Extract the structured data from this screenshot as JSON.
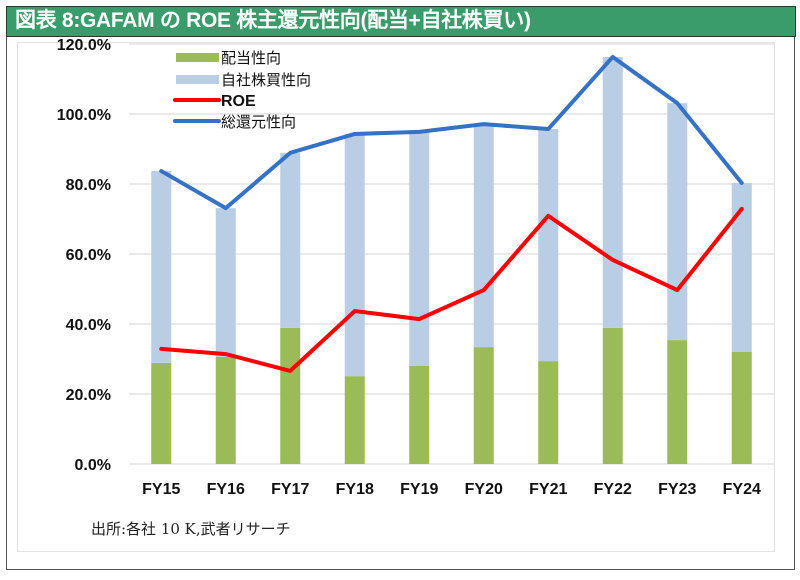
{
  "title": "図表 8:GAFAM の ROE 株主還元性向(配当+自社株買い)",
  "source_note": "出所:各社 10 K,武者リサーチ",
  "colors": {
    "title_bar": "#3A9C6A",
    "dividend": "#9BBB59",
    "buyback": "#B9CDE5",
    "roe": "#FF0000",
    "total": "#3572C6",
    "grid": "#E4E4E4"
  },
  "chart_data": {
    "type": "bar",
    "stacked": true,
    "title": "図表 8:GAFAM の ROE 株主還元性向(配当+自社株買い)",
    "xlabel": "",
    "ylabel": "",
    "ylim": [
      0,
      120
    ],
    "y_ticks": [
      0,
      20,
      40,
      60,
      80,
      100,
      120
    ],
    "y_tick_labels": [
      "0.0%",
      "20.0%",
      "40.0%",
      "60.0%",
      "80.0%",
      "100.0%",
      "120.0%"
    ],
    "grid": true,
    "legend_position": "top-left",
    "categories": [
      "FY15",
      "FY16",
      "FY17",
      "FY18",
      "FY19",
      "FY20",
      "FY21",
      "FY22",
      "FY23",
      "FY24"
    ],
    "series": [
      {
        "name": "配当性向",
        "kind": "bar",
        "values": [
          28.9,
          30.6,
          38.9,
          25.1,
          28.0,
          33.4,
          29.4,
          38.9,
          35.4,
          32.0
        ]
      },
      {
        "name": "自社株買性向",
        "kind": "bar",
        "values": [
          54.8,
          42.5,
          50.0,
          69.2,
          66.9,
          63.7,
          66.3,
          77.4,
          67.7,
          48.3
        ]
      },
      {
        "name": "ROE",
        "kind": "line",
        "values": [
          32.9,
          31.4,
          26.6,
          43.7,
          41.4,
          49.7,
          70.9,
          58.3,
          49.7,
          72.9
        ]
      },
      {
        "name": "総還元性向",
        "kind": "line",
        "values": [
          83.7,
          73.1,
          88.9,
          94.3,
          94.9,
          97.1,
          95.7,
          116.3,
          103.1,
          80.3
        ]
      }
    ]
  }
}
